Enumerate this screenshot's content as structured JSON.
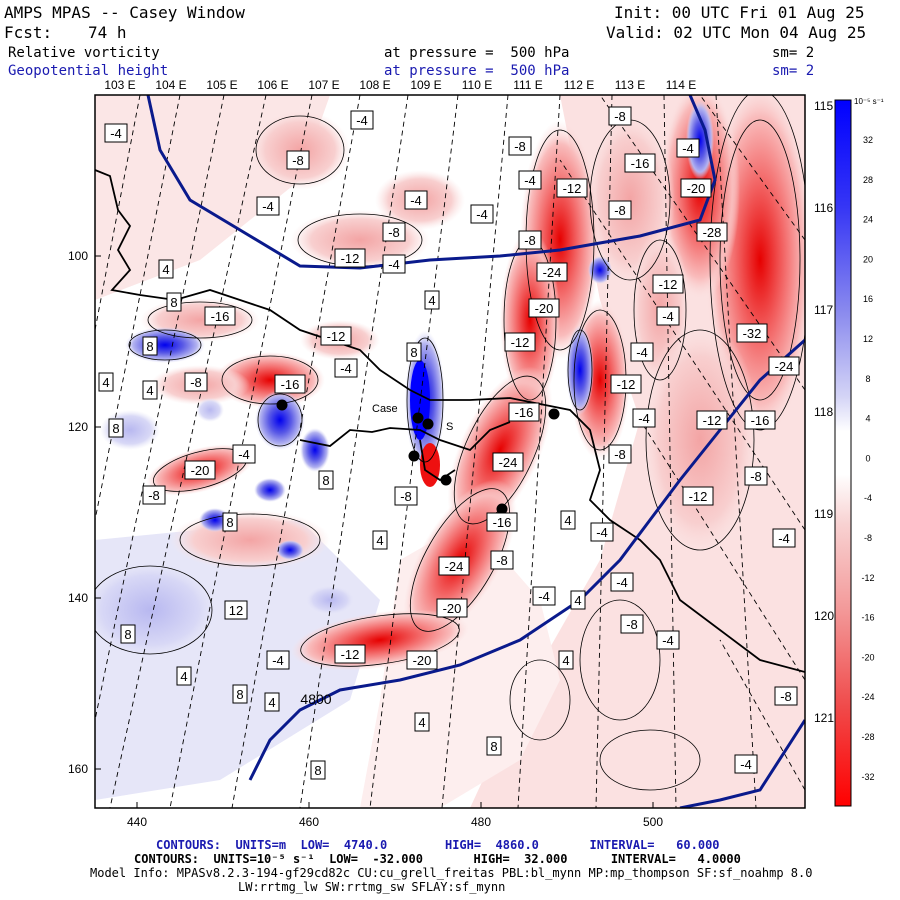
{
  "header": {
    "title": "AMPS MPAS -- Casey Window",
    "init": "Init: 00 UTC Fri 01 Aug 25",
    "fcst_label": "Fcst:",
    "fcst_value": "74 h",
    "valid": "Valid: 02 UTC Mon 04 Aug 25",
    "field1_name": "Relative vorticity",
    "field1_level": "at pressure =  500 hPa",
    "field1_sm": "sm= 2",
    "field2_name": "Geopotential height",
    "field2_level": "at pressure =  500 hPa",
    "field2_sm": "sm= 2"
  },
  "colors": {
    "positive": "#0000ff",
    "negative": "#ff0000",
    "height_contour": "#0a1a8c"
  },
  "top_longitudes": [
    "103 E",
    "104 E",
    "105 E",
    "106 E",
    "107 E",
    "108 E",
    "109 E",
    "110 E",
    "111 E",
    "112 E",
    "113 E",
    "114 E"
  ],
  "right_longitudes": [
    "115 E",
    "116 E",
    "117 E",
    "118 E",
    "119 E",
    "120 E",
    "121 E"
  ],
  "y_ticks": [
    "100",
    "120",
    "140",
    "160"
  ],
  "x_ticks": [
    "440",
    "460",
    "480",
    "500"
  ],
  "colorbar": {
    "unit": "10⁻⁵ s⁻¹",
    "labels": [
      "32",
      "28",
      "24",
      "20",
      "16",
      "12",
      "8",
      "4",
      "0",
      "-4",
      "-8",
      "-12",
      "-16",
      "-20",
      "-24",
      "-28",
      "-32"
    ]
  },
  "vort_labels": [
    {
      "t": "-4",
      "x": 116,
      "y": 133
    },
    {
      "t": "-4",
      "x": 362,
      "y": 120
    },
    {
      "t": "-8",
      "x": 620,
      "y": 116
    },
    {
      "t": "-8",
      "x": 298,
      "y": 160
    },
    {
      "t": "-8",
      "x": 520,
      "y": 146
    },
    {
      "t": "-16",
      "x": 640,
      "y": 163
    },
    {
      "t": "-4",
      "x": 688,
      "y": 148
    },
    {
      "t": "-4",
      "x": 268,
      "y": 206
    },
    {
      "t": "-4",
      "x": 416,
      "y": 200
    },
    {
      "t": "-4",
      "x": 530,
      "y": 180
    },
    {
      "t": "-12",
      "x": 572,
      "y": 188
    },
    {
      "t": "-20",
      "x": 696,
      "y": 188
    },
    {
      "t": "-8",
      "x": 620,
      "y": 210
    },
    {
      "t": "-4",
      "x": 482,
      "y": 214
    },
    {
      "t": "-8",
      "x": 394,
      "y": 232
    },
    {
      "t": "-8",
      "x": 530,
      "y": 240
    },
    {
      "t": "-28",
      "x": 712,
      "y": 232
    },
    {
      "t": "-12",
      "x": 350,
      "y": 258
    },
    {
      "t": "-4",
      "x": 394,
      "y": 264
    },
    {
      "t": "4",
      "x": 166,
      "y": 269
    },
    {
      "t": "-24",
      "x": 552,
      "y": 272
    },
    {
      "t": "-12",
      "x": 668,
      "y": 284
    },
    {
      "t": "8",
      "x": 174,
      "y": 302
    },
    {
      "t": "-16",
      "x": 220,
      "y": 316
    },
    {
      "t": "4",
      "x": 432,
      "y": 300
    },
    {
      "t": "-20",
      "x": 544,
      "y": 308
    },
    {
      "t": "-4",
      "x": 668,
      "y": 316
    },
    {
      "t": "-12",
      "x": 336,
      "y": 336
    },
    {
      "t": "-12",
      "x": 520,
      "y": 342
    },
    {
      "t": "-32",
      "x": 752,
      "y": 333
    },
    {
      "t": "8",
      "x": 150,
      "y": 346
    },
    {
      "t": "-4",
      "x": 346,
      "y": 368
    },
    {
      "t": "8",
      "x": 414,
      "y": 352
    },
    {
      "t": "-4",
      "x": 642,
      "y": 352
    },
    {
      "t": "4",
      "x": 106,
      "y": 382
    },
    {
      "t": "-8",
      "x": 196,
      "y": 382
    },
    {
      "t": "-16",
      "x": 290,
      "y": 384
    },
    {
      "t": "-12",
      "x": 626,
      "y": 384
    },
    {
      "t": "-24",
      "x": 784,
      "y": 366
    },
    {
      "t": "4",
      "x": 150,
      "y": 390
    },
    {
      "t": "8",
      "x": 116,
      "y": 428
    },
    {
      "t": "-16",
      "x": 524,
      "y": 412
    },
    {
      "t": "-4",
      "x": 644,
      "y": 418
    },
    {
      "t": "-12",
      "x": 712,
      "y": 420
    },
    {
      "t": "-16",
      "x": 760,
      "y": 420
    },
    {
      "t": "-4",
      "x": 244,
      "y": 454
    },
    {
      "t": "-20",
      "x": 200,
      "y": 470
    },
    {
      "t": "-24",
      "x": 508,
      "y": 462
    },
    {
      "t": "-8",
      "x": 620,
      "y": 454
    },
    {
      "t": "8",
      "x": 326,
      "y": 480
    },
    {
      "t": "-8",
      "x": 756,
      "y": 476
    },
    {
      "t": "-8",
      "x": 154,
      "y": 495
    },
    {
      "t": "-8",
      "x": 406,
      "y": 496
    },
    {
      "t": "-12",
      "x": 698,
      "y": 496
    },
    {
      "t": "8",
      "x": 230,
      "y": 522
    },
    {
      "t": "-16",
      "x": 502,
      "y": 522
    },
    {
      "t": "4",
      "x": 568,
      "y": 520
    },
    {
      "t": "-4",
      "x": 602,
      "y": 532
    },
    {
      "t": "4",
      "x": 380,
      "y": 540
    },
    {
      "t": "-4",
      "x": 784,
      "y": 538
    },
    {
      "t": "-8",
      "x": 502,
      "y": 560
    },
    {
      "t": "-24",
      "x": 454,
      "y": 566
    },
    {
      "t": "-4",
      "x": 622,
      "y": 582
    },
    {
      "t": "-4",
      "x": 544,
      "y": 596
    },
    {
      "t": "4",
      "x": 578,
      "y": 600
    },
    {
      "t": "12",
      "x": 236,
      "y": 610
    },
    {
      "t": "-20",
      "x": 452,
      "y": 608
    },
    {
      "t": "-8",
      "x": 632,
      "y": 624
    },
    {
      "t": "8",
      "x": 128,
      "y": 634
    },
    {
      "t": "-4",
      "x": 668,
      "y": 640
    },
    {
      "t": "-4",
      "x": 278,
      "y": 660
    },
    {
      "t": "-12",
      "x": 350,
      "y": 654
    },
    {
      "t": "-20",
      "x": 422,
      "y": 660
    },
    {
      "t": "4",
      "x": 566,
      "y": 660
    },
    {
      "t": "4",
      "x": 184,
      "y": 676
    },
    {
      "t": "8",
      "x": 240,
      "y": 694
    },
    {
      "t": "4",
      "x": 272,
      "y": 702
    },
    {
      "t": "-8",
      "x": 786,
      "y": 696
    },
    {
      "t": "4",
      "x": 422,
      "y": 722
    },
    {
      "t": "8",
      "x": 494,
      "y": 746
    },
    {
      "t": "8",
      "x": 318,
      "y": 770
    },
    {
      "t": "-4",
      "x": 746,
      "y": 764
    }
  ],
  "height_labels": [
    {
      "t": "4800",
      "x": 316,
      "y": 704
    }
  ],
  "station_labels": [
    {
      "t": "Case",
      "x": 372,
      "y": 412
    },
    {
      "t": "S",
      "x": 446,
      "y": 430
    }
  ],
  "stations": [
    {
      "x": 282,
      "y": 405
    },
    {
      "x": 418,
      "y": 418
    },
    {
      "x": 428,
      "y": 424
    },
    {
      "x": 414,
      "y": 456
    },
    {
      "x": 446,
      "y": 480
    },
    {
      "x": 554,
      "y": 414
    },
    {
      "x": 502,
      "y": 509
    }
  ],
  "footer": {
    "line1": "CONTOURS:  UNITS=m  LOW=  4740.0        HIGH=  4860.0       INTERVAL=   60.000",
    "line2": "CONTOURS:  UNITS=10⁻⁵ s⁻¹  LOW=  -32.000       HIGH=  32.000      INTERVAL=   4.0000",
    "line3": "Model Info: MPASv8.2.3-194-gf29cd82c CU:cu_grell_freitas PBL:bl_mynn MP:mp_thompson SF:sf_noahmp 8.0",
    "line4": "LW:rrtmg_lw SW:rrtmg_sw SFLAY:sf_mynn"
  }
}
